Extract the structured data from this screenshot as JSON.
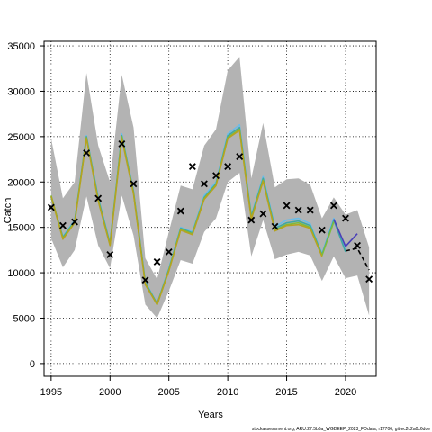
{
  "chart_data": {
    "type": "line",
    "xlabel": "Years",
    "ylabel": "Catch",
    "xlim": [
      1994.4,
      2022.6
    ],
    "ylim": [
      -1400,
      35500
    ],
    "x_ticks": [
      1995,
      2000,
      2005,
      2010,
      2015,
      2020
    ],
    "y_ticks": [
      0,
      5000,
      10000,
      15000,
      20000,
      25000,
      30000,
      35000
    ],
    "grid": true,
    "observed": {
      "marker": "x",
      "x": [
        1995,
        1996,
        1997,
        1998,
        1999,
        2000,
        2001,
        2002,
        2003,
        2004,
        2005,
        2006,
        2007,
        2008,
        2009,
        2010,
        2011,
        2012,
        2013,
        2014,
        2015,
        2016,
        2017,
        2018,
        2019,
        2020,
        2021,
        2022
      ],
      "y": [
        17200,
        15200,
        15600,
        23200,
        18200,
        12000,
        24200,
        19800,
        9200,
        11200,
        12300,
        16800,
        21700,
        19800,
        20700,
        21700,
        22800,
        15800,
        16500,
        15100,
        17400,
        16900,
        16900,
        14700,
        17400,
        16000,
        13000,
        9300
      ]
    },
    "confidence_band": {
      "x": [
        1995,
        1996,
        1997,
        1998,
        1999,
        2000,
        2001,
        2002,
        2003,
        2004,
        2005,
        2006,
        2007,
        2008,
        2009,
        2010,
        2011,
        2012,
        2013,
        2014,
        2015,
        2016,
        2017,
        2018,
        2019,
        2020,
        2021,
        2022
      ],
      "upper": [
        24800,
        18200,
        20000,
        32000,
        24000,
        20000,
        31800,
        26000,
        11600,
        9300,
        14500,
        19600,
        19200,
        24000,
        25800,
        32300,
        33800,
        20400,
        26500,
        19400,
        20300,
        20400,
        19700,
        16000,
        18300,
        16400,
        16900,
        12800
      ],
      "lower": [
        13800,
        10600,
        12500,
        18400,
        13000,
        10500,
        18500,
        14100,
        6500,
        5000,
        8000,
        11400,
        11000,
        14500,
        16000,
        20000,
        21000,
        11800,
        15800,
        11500,
        12000,
        12300,
        11900,
        9100,
        11800,
        9400,
        9700,
        5300
      ]
    },
    "series": [
      {
        "color": "#6bbde8",
        "x": [
          1995,
          1996,
          1997,
          1998,
          1999,
          2000,
          2001,
          2002,
          2003,
          2004,
          2005,
          2006,
          2007,
          2008,
          2009,
          2010,
          2011,
          2012,
          2013,
          2014,
          2015,
          2016,
          2017,
          2018,
          2019,
          2020
        ],
        "y": [
          18300,
          14000,
          15800,
          25100,
          18300,
          13300,
          25300,
          19000,
          9000,
          6600,
          10500,
          15000,
          14500,
          18500,
          20000,
          25300,
          26300,
          16300,
          20600,
          15100,
          15800,
          16000,
          15400,
          12100,
          16000,
          12400
        ]
      },
      {
        "color": "#3fa7a4",
        "x": [
          1995,
          1996,
          1997,
          1998,
          1999,
          2000,
          2001,
          2002,
          2003,
          2004,
          2005,
          2006,
          2007,
          2008,
          2009,
          2010,
          2011,
          2012,
          2013,
          2014,
          2015,
          2016,
          2017,
          2018,
          2019,
          2020
        ],
        "y": [
          18400,
          13900,
          15700,
          25000,
          18200,
          13200,
          25100,
          18900,
          8900,
          6600,
          10400,
          14900,
          14400,
          18300,
          19800,
          25100,
          26000,
          16200,
          20400,
          14900,
          15500,
          15700,
          15200,
          12000,
          15800,
          12300
        ]
      },
      {
        "color": "#7dbb3a",
        "x": [
          1995,
          1996,
          1997,
          1998,
          1999,
          2000,
          2001,
          2002,
          2003,
          2004,
          2005,
          2006,
          2007,
          2008,
          2009,
          2010,
          2011,
          2012,
          2013,
          2014,
          2015,
          2016,
          2017,
          2018,
          2019
        ],
        "y": [
          18500,
          13800,
          15600,
          24900,
          18000,
          13100,
          25000,
          18800,
          8800,
          6500,
          10300,
          14800,
          14300,
          18200,
          19700,
          24900,
          25800,
          16000,
          20200,
          14700,
          15300,
          15500,
          15000,
          11900,
          15600
        ]
      },
      {
        "color": "#b5a320",
        "x": [
          1995,
          1996,
          1997,
          1998,
          1999,
          2000,
          2001,
          2002,
          2003,
          2004,
          2005,
          2006,
          2007,
          2008,
          2009,
          2010,
          2011,
          2012,
          2013,
          2014,
          2015,
          2016,
          2017,
          2018
        ],
        "y": [
          18400,
          13700,
          15500,
          24800,
          17900,
          13000,
          24800,
          18700,
          8700,
          6500,
          10200,
          14700,
          14200,
          18100,
          19600,
          24800,
          25700,
          15900,
          20100,
          14600,
          15200,
          15300,
          14900,
          11800
        ]
      },
      {
        "color": "#4a3fb8",
        "x": [
          2019,
          2020,
          2021
        ],
        "y": [
          15900,
          12900,
          14300
        ]
      },
      {
        "color": "#000000",
        "dashed": true,
        "x": [
          2020,
          2021,
          2022
        ],
        "y": [
          12400,
          12700,
          10300
        ]
      }
    ],
    "footer_note": "stockassessment.org, ARU.27.5b6a_WGDEEP_2023_FOdata, r17706, git:ec2c2a0c6dde"
  }
}
